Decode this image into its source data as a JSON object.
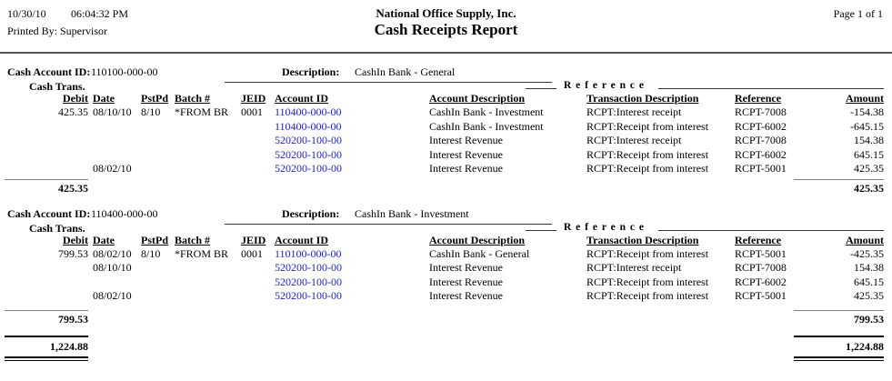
{
  "page_header": {
    "date": "10/30/10",
    "time": "06:04:32 PM",
    "printed_by": "Printed By: Supervisor",
    "company": "National Office Supply, Inc.",
    "report_title": "Cash Receipts Report",
    "page_label": "Page 1 of 1"
  },
  "labels": {
    "cash_account_id": "Cash Account ID:",
    "description": "Description:",
    "cash_trans": "Cash Trans.",
    "reference_group": "R e f e r e n c e",
    "col_debit": "Debit",
    "col_date": "Date",
    "col_pstpd": "PstPd",
    "col_batch": "Batch #",
    "col_jeid": "JEID",
    "col_account_id": "Account ID",
    "col_account_description": "Account Description",
    "col_transaction_description": "Transaction Description",
    "col_reference": "Reference",
    "col_amount": "Amount"
  },
  "colors": {
    "account_link_blue": "#2222CC",
    "section_total_rule_gray": "#808080",
    "grand_total_rule_black": "#000000"
  },
  "sections": [
    {
      "cash_account_id": "110100-000-00",
      "description": "CashIn Bank - General",
      "rows": [
        {
          "debit": "425.35",
          "date": "08/10/10",
          "pstpd": "8/10",
          "batch": "*FROM BR",
          "jeid": "0001",
          "account_id": "110400-000-00",
          "account_description": "CashIn Bank - Investment",
          "transaction_description": "RCPT:Interest receipt",
          "reference": "RCPT-7008",
          "amount": "-154.38"
        },
        {
          "debit": "",
          "date": "",
          "pstpd": "",
          "batch": "",
          "jeid": "",
          "account_id": "110400-000-00",
          "account_description": "CashIn Bank - Investment",
          "transaction_description": "RCPT:Receipt from interest",
          "reference": "RCPT-6002",
          "amount": "-645.15"
        },
        {
          "debit": "",
          "date": "",
          "pstpd": "",
          "batch": "",
          "jeid": "",
          "account_id": "520200-100-00",
          "account_description": "Interest Revenue",
          "transaction_description": "RCPT:Interest receipt",
          "reference": "RCPT-7008",
          "amount": "154.38"
        },
        {
          "debit": "",
          "date": "",
          "pstpd": "",
          "batch": "",
          "jeid": "",
          "account_id": "520200-100-00",
          "account_description": "Interest Revenue",
          "transaction_description": "RCPT:Receipt from interest",
          "reference": "RCPT-6002",
          "amount": "645.15"
        },
        {
          "debit": "",
          "date": "08/02/10",
          "pstpd": "",
          "batch": "",
          "jeid": "",
          "account_id": "520200-100-00",
          "account_description": "Interest Revenue",
          "transaction_description": "RCPT:Receipt from interest",
          "reference": "RCPT-5001",
          "amount": "425.35"
        }
      ],
      "total_debit": "425.35",
      "total_amount": "425.35"
    },
    {
      "cash_account_id": "110400-000-00",
      "description": "CashIn Bank - Investment",
      "rows": [
        {
          "debit": "799.53",
          "date": "08/02/10",
          "pstpd": "8/10",
          "batch": "*FROM BR",
          "jeid": "0001",
          "account_id": "110100-000-00",
          "account_description": "CashIn Bank - General",
          "transaction_description": "RCPT:Receipt from interest",
          "reference": "RCPT-5001",
          "amount": "-425.35"
        },
        {
          "debit": "",
          "date": "08/10/10",
          "pstpd": "",
          "batch": "",
          "jeid": "",
          "account_id": "520200-100-00",
          "account_description": "Interest Revenue",
          "transaction_description": "RCPT:Interest receipt",
          "reference": "RCPT-7008",
          "amount": "154.38"
        },
        {
          "debit": "",
          "date": "",
          "pstpd": "",
          "batch": "",
          "jeid": "",
          "account_id": "520200-100-00",
          "account_description": "Interest Revenue",
          "transaction_description": "RCPT:Receipt from interest",
          "reference": "RCPT-6002",
          "amount": "645.15"
        },
        {
          "debit": "",
          "date": "08/02/10",
          "pstpd": "",
          "batch": "",
          "jeid": "",
          "account_id": "520200-100-00",
          "account_description": "Interest Revenue",
          "transaction_description": "RCPT:Receipt from interest",
          "reference": "RCPT-5001",
          "amount": "425.35"
        }
      ],
      "total_debit": "799.53",
      "total_amount": "799.53"
    }
  ],
  "grand_total": {
    "debit": "1,224.88",
    "amount": "1,224.88"
  }
}
